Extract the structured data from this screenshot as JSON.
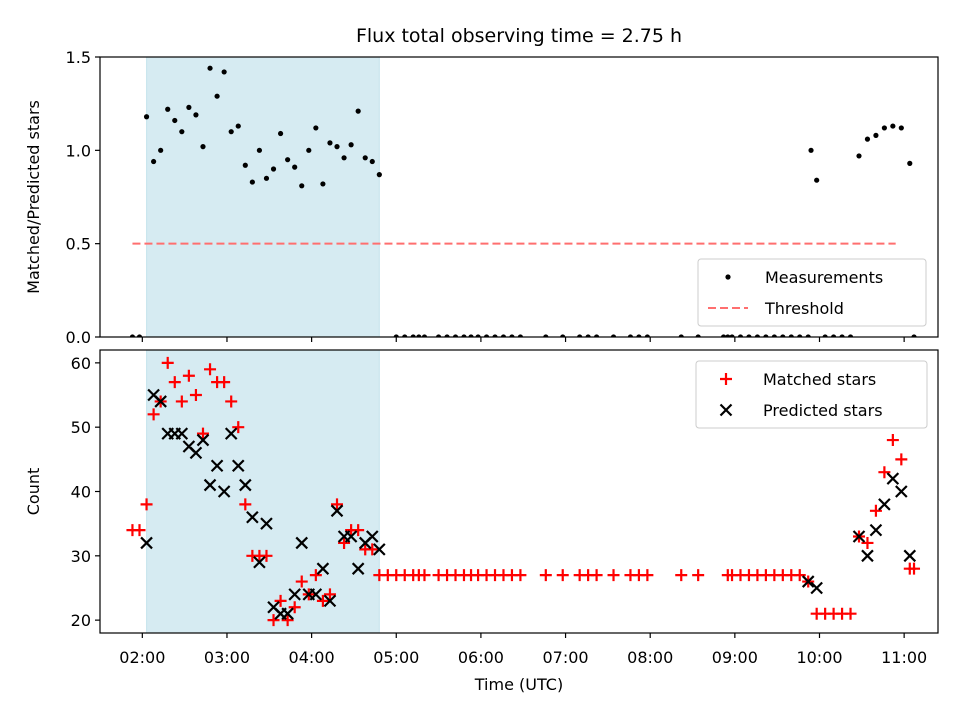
{
  "figure": {
    "title": "Flux total observing time = 2.75 h",
    "xlabel": "Time (UTC)",
    "colors": {
      "highlight": "#add8e6",
      "matched": "#ff0000",
      "predicted": "#000000",
      "threshold": "#ff6f6f"
    }
  },
  "chart_data": [
    {
      "type": "scatter",
      "panel": "top",
      "title": "Flux total observing time = 2.75 h",
      "xlabel": "",
      "ylabel": "Matched/Predicted stars",
      "ylim": [
        0,
        1.5
      ],
      "yticks": [
        "0.0",
        "0.5",
        "1.0",
        "1.5"
      ],
      "xlim": [
        "01:30",
        "11:24"
      ],
      "xticks": [
        "02:00",
        "03:00",
        "04:00",
        "05:00",
        "06:00",
        "07:00",
        "08:00",
        "09:00",
        "10:00",
        "11:00"
      ],
      "highlight_span": [
        "02:03",
        "04:48"
      ],
      "threshold": {
        "value": 0.5,
        "x_start": "01:53",
        "x_end": "10:54"
      },
      "legend": {
        "position": "lower right",
        "entries": [
          "Measurements",
          "Threshold"
        ]
      },
      "series": [
        {
          "name": "Measurements",
          "marker": "dot",
          "points": [
            [
              "01:53",
              0
            ],
            [
              "01:58",
              0
            ],
            [
              "02:03",
              1.18
            ],
            [
              "02:08",
              0.94
            ],
            [
              "02:13",
              1.0
            ],
            [
              "02:18",
              1.22
            ],
            [
              "02:23",
              1.16
            ],
            [
              "02:28",
              1.1
            ],
            [
              "02:33",
              1.23
            ],
            [
              "02:38",
              1.19
            ],
            [
              "02:43",
              1.02
            ],
            [
              "02:48",
              1.44
            ],
            [
              "02:53",
              1.29
            ],
            [
              "02:58",
              1.42
            ],
            [
              "03:03",
              1.1
            ],
            [
              "03:08",
              1.13
            ],
            [
              "03:13",
              0.92
            ],
            [
              "03:18",
              0.83
            ],
            [
              "03:23",
              1.0
            ],
            [
              "03:28",
              0.85
            ],
            [
              "03:33",
              0.9
            ],
            [
              "03:38",
              1.09
            ],
            [
              "03:43",
              0.95
            ],
            [
              "03:48",
              0.91
            ],
            [
              "03:53",
              0.81
            ],
            [
              "03:58",
              1.0
            ],
            [
              "04:03",
              1.12
            ],
            [
              "04:08",
              0.82
            ],
            [
              "04:13",
              1.04
            ],
            [
              "04:18",
              1.02
            ],
            [
              "04:23",
              0.96
            ],
            [
              "04:28",
              1.03
            ],
            [
              "04:33",
              1.21
            ],
            [
              "04:38",
              0.96
            ],
            [
              "04:43",
              0.94
            ],
            [
              "04:48",
              0.87
            ],
            [
              "05:00",
              0
            ],
            [
              "05:06",
              0
            ],
            [
              "05:12",
              0
            ],
            [
              "05:16",
              0
            ],
            [
              "05:20",
              0
            ],
            [
              "05:30",
              0
            ],
            [
              "05:36",
              0
            ],
            [
              "05:42",
              0
            ],
            [
              "05:48",
              0
            ],
            [
              "05:53",
              0
            ],
            [
              "05:58",
              0
            ],
            [
              "06:04",
              0
            ],
            [
              "06:10",
              0
            ],
            [
              "06:16",
              0
            ],
            [
              "06:22",
              0
            ],
            [
              "06:28",
              0
            ],
            [
              "06:46",
              0
            ],
            [
              "06:58",
              0
            ],
            [
              "07:10",
              0
            ],
            [
              "07:16",
              0
            ],
            [
              "07:22",
              0
            ],
            [
              "07:34",
              0
            ],
            [
              "07:46",
              0
            ],
            [
              "07:52",
              0
            ],
            [
              "07:58",
              0
            ],
            [
              "08:22",
              0
            ],
            [
              "08:34",
              0
            ],
            [
              "08:52",
              0
            ],
            [
              "08:55",
              0
            ],
            [
              "08:58",
              0
            ],
            [
              "09:04",
              0
            ],
            [
              "09:10",
              0
            ],
            [
              "09:16",
              0
            ],
            [
              "09:22",
              0
            ],
            [
              "09:28",
              0
            ],
            [
              "09:34",
              0
            ],
            [
              "09:40",
              0
            ],
            [
              "09:46",
              0
            ],
            [
              "09:52",
              0
            ],
            [
              "09:54",
              1.0
            ],
            [
              "09:58",
              0.84
            ],
            [
              "10:04",
              0
            ],
            [
              "10:10",
              0
            ],
            [
              "10:16",
              0
            ],
            [
              "10:22",
              0
            ],
            [
              "10:28",
              0.97
            ],
            [
              "10:34",
              1.06
            ],
            [
              "10:40",
              1.08
            ],
            [
              "10:46",
              1.12
            ],
            [
              "10:52",
              1.13
            ],
            [
              "10:58",
              1.12
            ],
            [
              "11:04",
              0.93
            ],
            [
              "11:07",
              0
            ]
          ]
        },
        {
          "name": "Threshold",
          "marker": "dashed-line",
          "points": [
            [
              "01:53",
              0.5
            ],
            [
              "10:54",
              0.5
            ]
          ]
        }
      ]
    },
    {
      "type": "scatter",
      "panel": "bottom",
      "xlabel": "Time (UTC)",
      "ylabel": "Count",
      "ylim": [
        18,
        62
      ],
      "yticks": [
        "20",
        "30",
        "40",
        "50",
        "60"
      ],
      "xlim": [
        "01:30",
        "11:24"
      ],
      "xticks": [
        "02:00",
        "03:00",
        "04:00",
        "05:00",
        "06:00",
        "07:00",
        "08:00",
        "09:00",
        "10:00",
        "11:00"
      ],
      "highlight_span": [
        "02:03",
        "04:48"
      ],
      "legend": {
        "position": "upper right",
        "entries": [
          "Matched stars",
          "Predicted stars"
        ]
      },
      "series": [
        {
          "name": "Matched stars",
          "marker": "plus",
          "points": [
            [
              "01:53",
              34
            ],
            [
              "01:58",
              34
            ],
            [
              "02:03",
              38
            ],
            [
              "02:08",
              52
            ],
            [
              "02:13",
              54
            ],
            [
              "02:18",
              60
            ],
            [
              "02:23",
              57
            ],
            [
              "02:28",
              54
            ],
            [
              "02:33",
              58
            ],
            [
              "02:38",
              55
            ],
            [
              "02:43",
              49
            ],
            [
              "02:48",
              59
            ],
            [
              "02:53",
              57
            ],
            [
              "02:58",
              57
            ],
            [
              "03:03",
              54
            ],
            [
              "03:08",
              50
            ],
            [
              "03:13",
              38
            ],
            [
              "03:18",
              30
            ],
            [
              "03:23",
              30
            ],
            [
              "03:28",
              30
            ],
            [
              "03:33",
              20
            ],
            [
              "03:38",
              23
            ],
            [
              "03:43",
              20
            ],
            [
              "03:48",
              22
            ],
            [
              "03:53",
              26
            ],
            [
              "03:58",
              24
            ],
            [
              "04:03",
              27
            ],
            [
              "04:08",
              23
            ],
            [
              "04:13",
              24
            ],
            [
              "04:18",
              38
            ],
            [
              "04:23",
              32
            ],
            [
              "04:28",
              34
            ],
            [
              "04:33",
              34
            ],
            [
              "04:38",
              31
            ],
            [
              "04:43",
              31
            ],
            [
              "04:48",
              27
            ],
            [
              "04:54",
              27
            ],
            [
              "05:00",
              27
            ],
            [
              "05:06",
              27
            ],
            [
              "05:12",
              27
            ],
            [
              "05:16",
              27
            ],
            [
              "05:20",
              27
            ],
            [
              "05:30",
              27
            ],
            [
              "05:36",
              27
            ],
            [
              "05:42",
              27
            ],
            [
              "05:48",
              27
            ],
            [
              "05:53",
              27
            ],
            [
              "05:58",
              27
            ],
            [
              "06:04",
              27
            ],
            [
              "06:10",
              27
            ],
            [
              "06:16",
              27
            ],
            [
              "06:22",
              27
            ],
            [
              "06:28",
              27
            ],
            [
              "06:46",
              27
            ],
            [
              "06:58",
              27
            ],
            [
              "07:10",
              27
            ],
            [
              "07:16",
              27
            ],
            [
              "07:22",
              27
            ],
            [
              "07:34",
              27
            ],
            [
              "07:46",
              27
            ],
            [
              "07:52",
              27
            ],
            [
              "07:58",
              27
            ],
            [
              "08:22",
              27
            ],
            [
              "08:34",
              27
            ],
            [
              "08:55",
              27
            ],
            [
              "08:58",
              27
            ],
            [
              "09:04",
              27
            ],
            [
              "09:10",
              27
            ],
            [
              "09:16",
              27
            ],
            [
              "09:22",
              27
            ],
            [
              "09:28",
              27
            ],
            [
              "09:34",
              27
            ],
            [
              "09:40",
              27
            ],
            [
              "09:46",
              27
            ],
            [
              "09:52",
              26
            ],
            [
              "09:58",
              21
            ],
            [
              "10:04",
              21
            ],
            [
              "10:10",
              21
            ],
            [
              "10:16",
              21
            ],
            [
              "10:22",
              21
            ],
            [
              "10:28",
              33
            ],
            [
              "10:34",
              32
            ],
            [
              "10:40",
              37
            ],
            [
              "10:46",
              43
            ],
            [
              "10:52",
              48
            ],
            [
              "10:58",
              45
            ],
            [
              "11:04",
              28
            ],
            [
              "11:07",
              28
            ]
          ]
        },
        {
          "name": "Predicted stars",
          "marker": "x",
          "points": [
            [
              "02:03",
              32
            ],
            [
              "02:08",
              55
            ],
            [
              "02:13",
              54
            ],
            [
              "02:18",
              49
            ],
            [
              "02:23",
              49
            ],
            [
              "02:28",
              49
            ],
            [
              "02:33",
              47
            ],
            [
              "02:38",
              46
            ],
            [
              "02:43",
              48
            ],
            [
              "02:48",
              41
            ],
            [
              "02:53",
              44
            ],
            [
              "02:58",
              40
            ],
            [
              "03:03",
              49
            ],
            [
              "03:08",
              44
            ],
            [
              "03:13",
              41
            ],
            [
              "03:18",
              36
            ],
            [
              "03:23",
              29
            ],
            [
              "03:28",
              35
            ],
            [
              "03:33",
              22
            ],
            [
              "03:38",
              21
            ],
            [
              "03:43",
              21
            ],
            [
              "03:48",
              24
            ],
            [
              "03:53",
              32
            ],
            [
              "03:58",
              24
            ],
            [
              "04:03",
              24
            ],
            [
              "04:08",
              28
            ],
            [
              "04:13",
              23
            ],
            [
              "04:18",
              37
            ],
            [
              "04:23",
              33
            ],
            [
              "04:28",
              33
            ],
            [
              "04:33",
              28
            ],
            [
              "04:38",
              32
            ],
            [
              "04:43",
              33
            ],
            [
              "04:48",
              31
            ],
            [
              "09:52",
              26
            ],
            [
              "09:58",
              25
            ],
            [
              "10:28",
              33
            ],
            [
              "10:34",
              30
            ],
            [
              "10:40",
              34
            ],
            [
              "10:46",
              38
            ],
            [
              "10:52",
              42
            ],
            [
              "10:58",
              40
            ],
            [
              "11:04",
              30
            ]
          ]
        }
      ]
    }
  ]
}
